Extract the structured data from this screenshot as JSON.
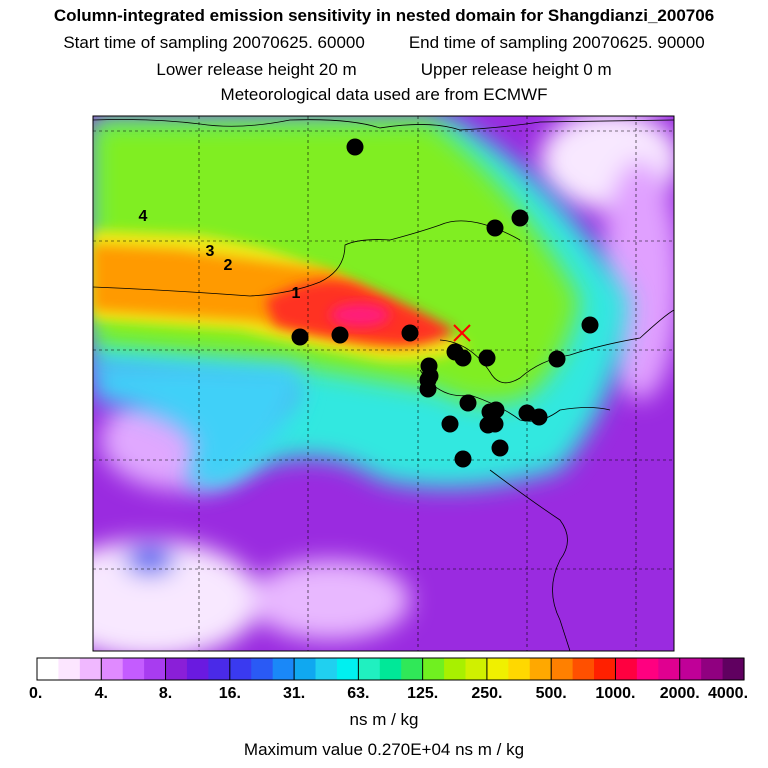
{
  "header": {
    "title": "Column-integrated emission sensitivity in nested domain for Shangdianzi_200706",
    "start_label": "Start time of sampling 20070625. 60000",
    "end_label": "End time of sampling 20070625. 90000",
    "lower_label": "Lower release height   20 m",
    "upper_label": "Upper release height    0 m",
    "met_label": "Meteorological data used are from ECMWF"
  },
  "colors": {
    "bg_high": "#8a1fd8",
    "bg_mid": "#3bf0e0",
    "band_green": "#88f000",
    "band_yellow": "#f2ea10",
    "band_orange": "#ff9400",
    "band_red": "#ff2a20",
    "band_pink": "#ff1a7a",
    "pale": "#f7e0ff",
    "marker": "#000000",
    "release": "#ff0000"
  },
  "chart_data": {
    "type": "heatmap",
    "title": "Column-integrated emission sensitivity in nested domain for Shangdianzi_200706",
    "colorbar": {
      "ticks": [
        "0.",
        "4.",
        "8.",
        "16.",
        "31.",
        "63.",
        "125.",
        "250.",
        "500.",
        "1000.",
        "2000.",
        "4000."
      ],
      "unit": "ns m / kg",
      "colors": [
        "#ffffff",
        "#fce6ff",
        "#f0b8ff",
        "#e08aff",
        "#c45cff",
        "#a83cf0",
        "#8a1fd8",
        "#6a1ae0",
        "#4a2ae8",
        "#3a3af0",
        "#2a5af5",
        "#1a88f8",
        "#10a8f0",
        "#20d0f0",
        "#00f0f0",
        "#20f0c0",
        "#00e898",
        "#30e858",
        "#70f020",
        "#a8f000",
        "#d0f000",
        "#f0f000",
        "#ffd800",
        "#ffa800",
        "#ff8000",
        "#ff5000",
        "#ff2000",
        "#ff0040",
        "#ff0080",
        "#e00090",
        "#c00098",
        "#900080",
        "#600060"
      ]
    },
    "maximum_value_label": "Maximum value  0.270E+04 ns m / kg",
    "cluster_labels": [
      "1",
      "2",
      "3",
      "4"
    ],
    "release_site": "Shangdianzi",
    "source_markers_count": 25
  }
}
